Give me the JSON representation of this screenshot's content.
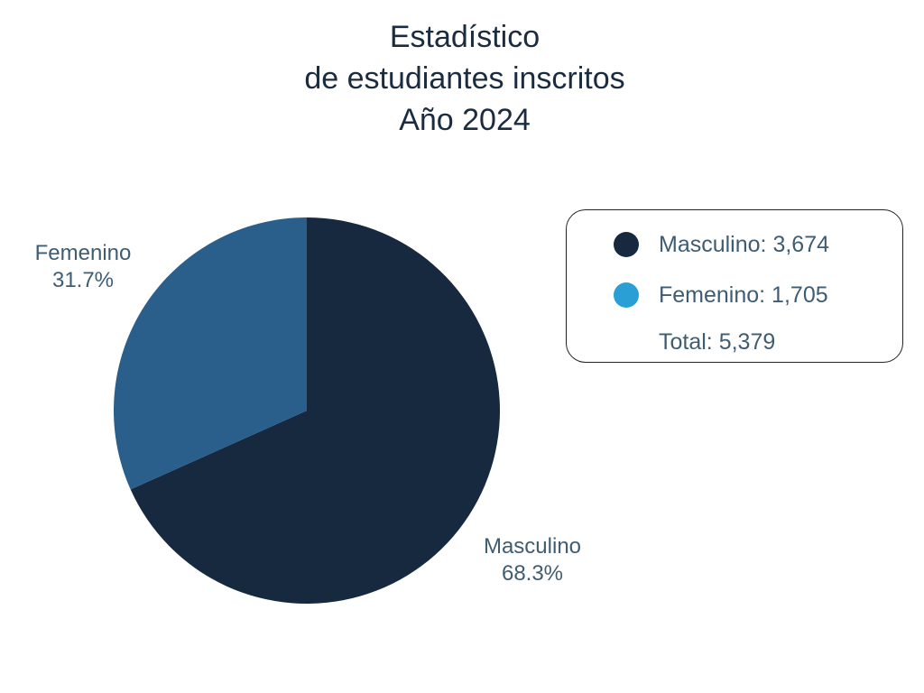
{
  "chart_data": {
    "type": "pie",
    "title_lines": [
      "Estadístico",
      "de estudiantes inscritos",
      "Año 2024"
    ],
    "slices": [
      {
        "name": "Masculino",
        "value": 3674,
        "percent_label": "68.3%",
        "color": "#16293f"
      },
      {
        "name": "Femenino",
        "value": 1705,
        "percent_label": "31.7%",
        "color": "#2b5f8b"
      }
    ],
    "legend": {
      "items": [
        {
          "text": "Masculino: 3,674",
          "dot_color": "#16293f"
        },
        {
          "text": "Femenino: 1,705",
          "dot_color": "#2a9fd6"
        }
      ],
      "total_text": "Total: 5,379",
      "placement": "right"
    }
  }
}
